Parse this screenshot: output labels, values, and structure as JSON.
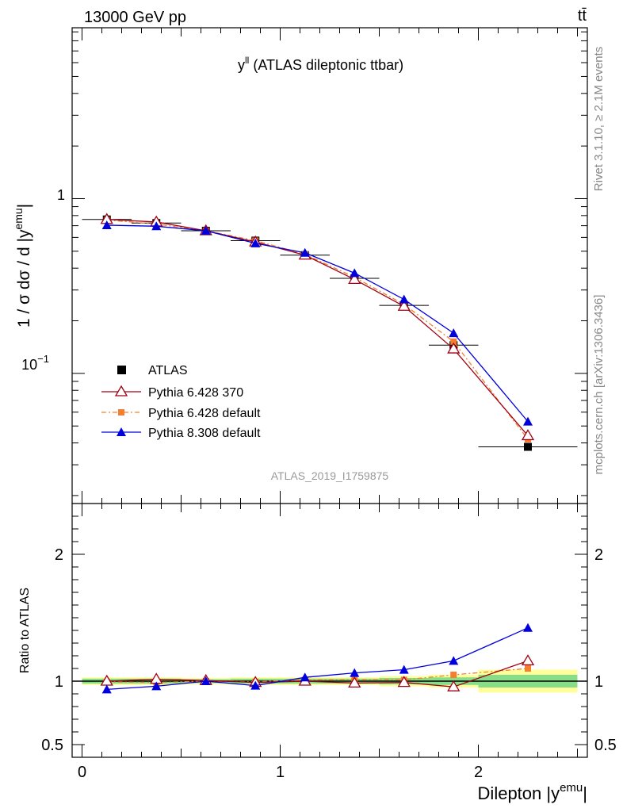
{
  "header": {
    "left": "13000 GeV pp",
    "right": "tt̄"
  },
  "side_labels": {
    "rivet": "Rivet 3.1.10, ≥ 2.1M events",
    "mcplots": "mcplots.cern.ch [arXiv:1306.3436]"
  },
  "chart_data": [
    {
      "type": "line",
      "panel": "main",
      "title": "y^ll (ATLAS dileptonic ttbar)",
      "title_main": "y",
      "title_sup": "ll",
      "title_rest": " (ATLAS dileptonic ttbar)",
      "ylabel": "1 / σ dσ / d |y^emu|",
      "ylabel_main": "1 / σ  dσ / d |y",
      "ylabel_sup": "emu",
      "ylabel_end": "|",
      "yscale": "log",
      "ylim": [
        0.018,
        9.5
      ],
      "xlim": [
        -0.05,
        2.55
      ],
      "yticklabels": [
        "1",
        "10"
      ],
      "yticklabel_exp": "−1",
      "analysis_label": "ATLAS_2019_I1759875",
      "legend_placement": "lower-left",
      "x": [
        0.125,
        0.375,
        0.625,
        0.875,
        1.125,
        1.375,
        1.625,
        1.875,
        2.25
      ],
      "xerr": [
        0.125,
        0.125,
        0.125,
        0.125,
        0.125,
        0.125,
        0.125,
        0.125,
        0.25
      ],
      "series": [
        {
          "name": "ATLAS",
          "color": "#000000",
          "marker": "square",
          "values": [
            0.76,
            0.725,
            0.655,
            0.575,
            0.475,
            0.35,
            0.245,
            0.145,
            0.038
          ]
        },
        {
          "name": "Pythia 6.428 370",
          "color": "#a00014",
          "marker": "open-triangle",
          "values": [
            0.76,
            0.735,
            0.655,
            0.565,
            0.475,
            0.345,
            0.242,
            0.138,
            0.044
          ]
        },
        {
          "name": "Pythia 6.428 default",
          "color": "#f38030",
          "marker": "square-dashed",
          "values": [
            0.755,
            0.715,
            0.655,
            0.575,
            0.48,
            0.355,
            0.248,
            0.152,
            0.042
          ]
        },
        {
          "name": "Pythia 8.308 default",
          "color": "#0000dd",
          "marker": "triangle",
          "values": [
            0.705,
            0.695,
            0.655,
            0.555,
            0.49,
            0.375,
            0.265,
            0.17,
            0.053
          ]
        }
      ]
    },
    {
      "type": "line",
      "panel": "ratio",
      "ylabel": "Ratio to ATLAS",
      "xlabel": "Dilepton |y^emu|",
      "xlabel_main": "Dilepton |y",
      "xlabel_sup": "emu",
      "xlabel_end": "|",
      "ylim": [
        0.4,
        2.4
      ],
      "xlim": [
        -0.05,
        2.55
      ],
      "yticks": [
        0.5,
        1,
        2
      ],
      "yticklabels": [
        "0.5",
        "1",
        "2"
      ],
      "xticks": [
        0,
        1,
        2
      ],
      "xticklabels": [
        "0",
        "1",
        "2"
      ],
      "x": [
        0.125,
        0.375,
        0.625,
        0.875,
        1.125,
        1.375,
        1.625,
        1.875,
        2.25
      ],
      "band_stat": [
        0.02,
        0.02,
        0.015,
        0.02,
        0.02,
        0.02,
        0.025,
        0.03,
        0.05
      ],
      "band_total": [
        0.03,
        0.03,
        0.025,
        0.03,
        0.03,
        0.03,
        0.04,
        0.05,
        0.09
      ],
      "series": [
        {
          "name": "Pythia 6.428 370",
          "color": "#a00014",
          "marker": "open-triangle",
          "values": [
            1.0,
            1.015,
            1.005,
            0.99,
            1.0,
            0.985,
            0.99,
            0.955,
            1.16
          ]
        },
        {
          "name": "Pythia 6.428 default",
          "color": "#f38030",
          "marker": "square-dashed",
          "values": [
            0.995,
            0.99,
            1.0,
            0.995,
            1.01,
            1.015,
            1.01,
            1.05,
            1.1
          ]
        },
        {
          "name": "Pythia 8.308 default",
          "color": "#0000dd",
          "marker": "triangle",
          "values": [
            0.935,
            0.96,
            1.0,
            0.965,
            1.03,
            1.065,
            1.09,
            1.16,
            1.42
          ]
        }
      ]
    }
  ]
}
